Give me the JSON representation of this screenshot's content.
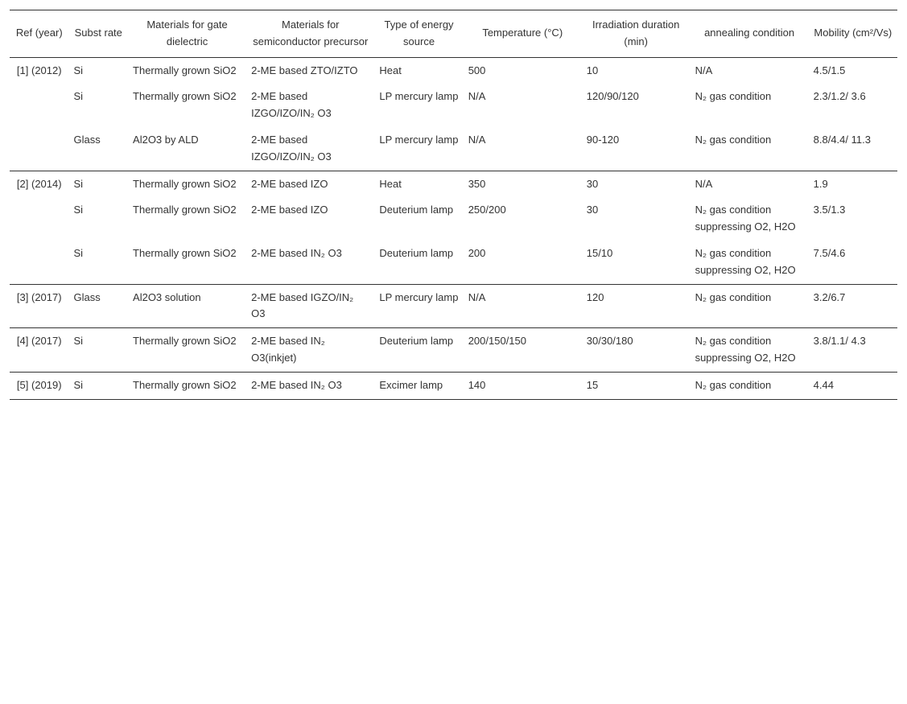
{
  "columns": {
    "ref": "Ref (year)",
    "substrate": "Subst\nrate",
    "gate": "Materials for gate dielectric",
    "semi": "Materials for semiconductor precursor",
    "energy": "Type of energy source",
    "temp": "Temperature (°C)",
    "irr": "Irradiation duration (min)",
    "ann": "annealing condition",
    "mob": "Mobility (cm²/Vs)"
  },
  "groups": [
    {
      "ref": "[1] (2012)",
      "rows": [
        {
          "substrate": "Si",
          "gate": "Thermally grown SiO2",
          "semi": "2-ME based ZTO/IZTO",
          "energy": "Heat",
          "temp": "500",
          "irr": "10",
          "ann": "N/A",
          "mob": "4.5/1.5"
        },
        {
          "substrate": "Si",
          "gate": "Thermally grown SiO2",
          "semi": "2-ME based IZGO/IZO/IN₂ O3",
          "energy": "LP mercury lamp",
          "temp": "N/A",
          "irr": "120/90/120",
          "ann": "N₂ gas condition",
          "mob": "2.3/1.2/ 3.6"
        },
        {
          "substrate": "Glass",
          "gate": "Al2O3 by ALD",
          "semi": "2-ME based IZGO/IZO/IN₂ O3",
          "energy": "LP mercury lamp",
          "temp": "N/A",
          "irr": "90-120",
          "ann": "N₂ gas condition",
          "mob": "8.8/4.4/ 11.3"
        }
      ]
    },
    {
      "ref": "[2] (2014)",
      "rows": [
        {
          "substrate": "Si",
          "gate": "Thermally grown SiO2",
          "semi": "2-ME based IZO",
          "energy": "Heat",
          "temp": "350",
          "irr": "30",
          "ann": "N/A",
          "mob": "1.9"
        },
        {
          "substrate": "Si",
          "gate": "Thermally grown SiO2",
          "semi": "2-ME based IZO",
          "energy": "Deuterium lamp",
          "temp": "250/200",
          "irr": "30",
          "ann": "N₂ gas condition suppressing O2, H2O",
          "mob": "3.5/1.3"
        },
        {
          "substrate": "Si",
          "gate": "Thermally grown SiO2",
          "semi": "2-ME based IN₂ O3",
          "energy": "Deuterium lamp",
          "temp": "200",
          "irr": "15/10",
          "ann": "N₂ gas condition suppressing O2, H2O",
          "mob": "7.5/4.6"
        }
      ]
    },
    {
      "ref": "[3] (2017)",
      "rows": [
        {
          "substrate": "Glass",
          "gate": "Al2O3 solution",
          "semi": "2-ME based IGZO/IN₂ O3",
          "energy": "LP mercury lamp",
          "temp": "N/A",
          "irr": "120",
          "ann": "N₂ gas condition",
          "mob": "3.2/6.7"
        }
      ]
    },
    {
      "ref": "[4] (2017)",
      "rows": [
        {
          "substrate": "Si",
          "gate": "Thermally grown SiO2",
          "semi": "2-ME based IN₂ O3(inkjet)",
          "energy": "Deuterium lamp",
          "temp": "200/150/150",
          "irr": "30/30/180",
          "ann": "N₂ gas condition suppressing O2, H2O",
          "mob": "3.8/1.1/ 4.3"
        }
      ]
    },
    {
      "ref": "[5] (2019)",
      "rows": [
        {
          "substrate": "Si",
          "gate": "Thermally grown SiO2",
          "semi": "2-ME based IN₂ O3",
          "energy": "Excimer lamp",
          "temp": "140",
          "irr": "15",
          "ann": "N₂ gas condition",
          "mob": "4.44"
        }
      ]
    }
  ],
  "style": {
    "font_family": "Arial",
    "font_size_pt": 13,
    "text_color": "#333333",
    "background_color": "#ffffff",
    "border_color": "#333333",
    "column_widths_pct": [
      6,
      6,
      12,
      13,
      9,
      12,
      11,
      12,
      9
    ]
  }
}
